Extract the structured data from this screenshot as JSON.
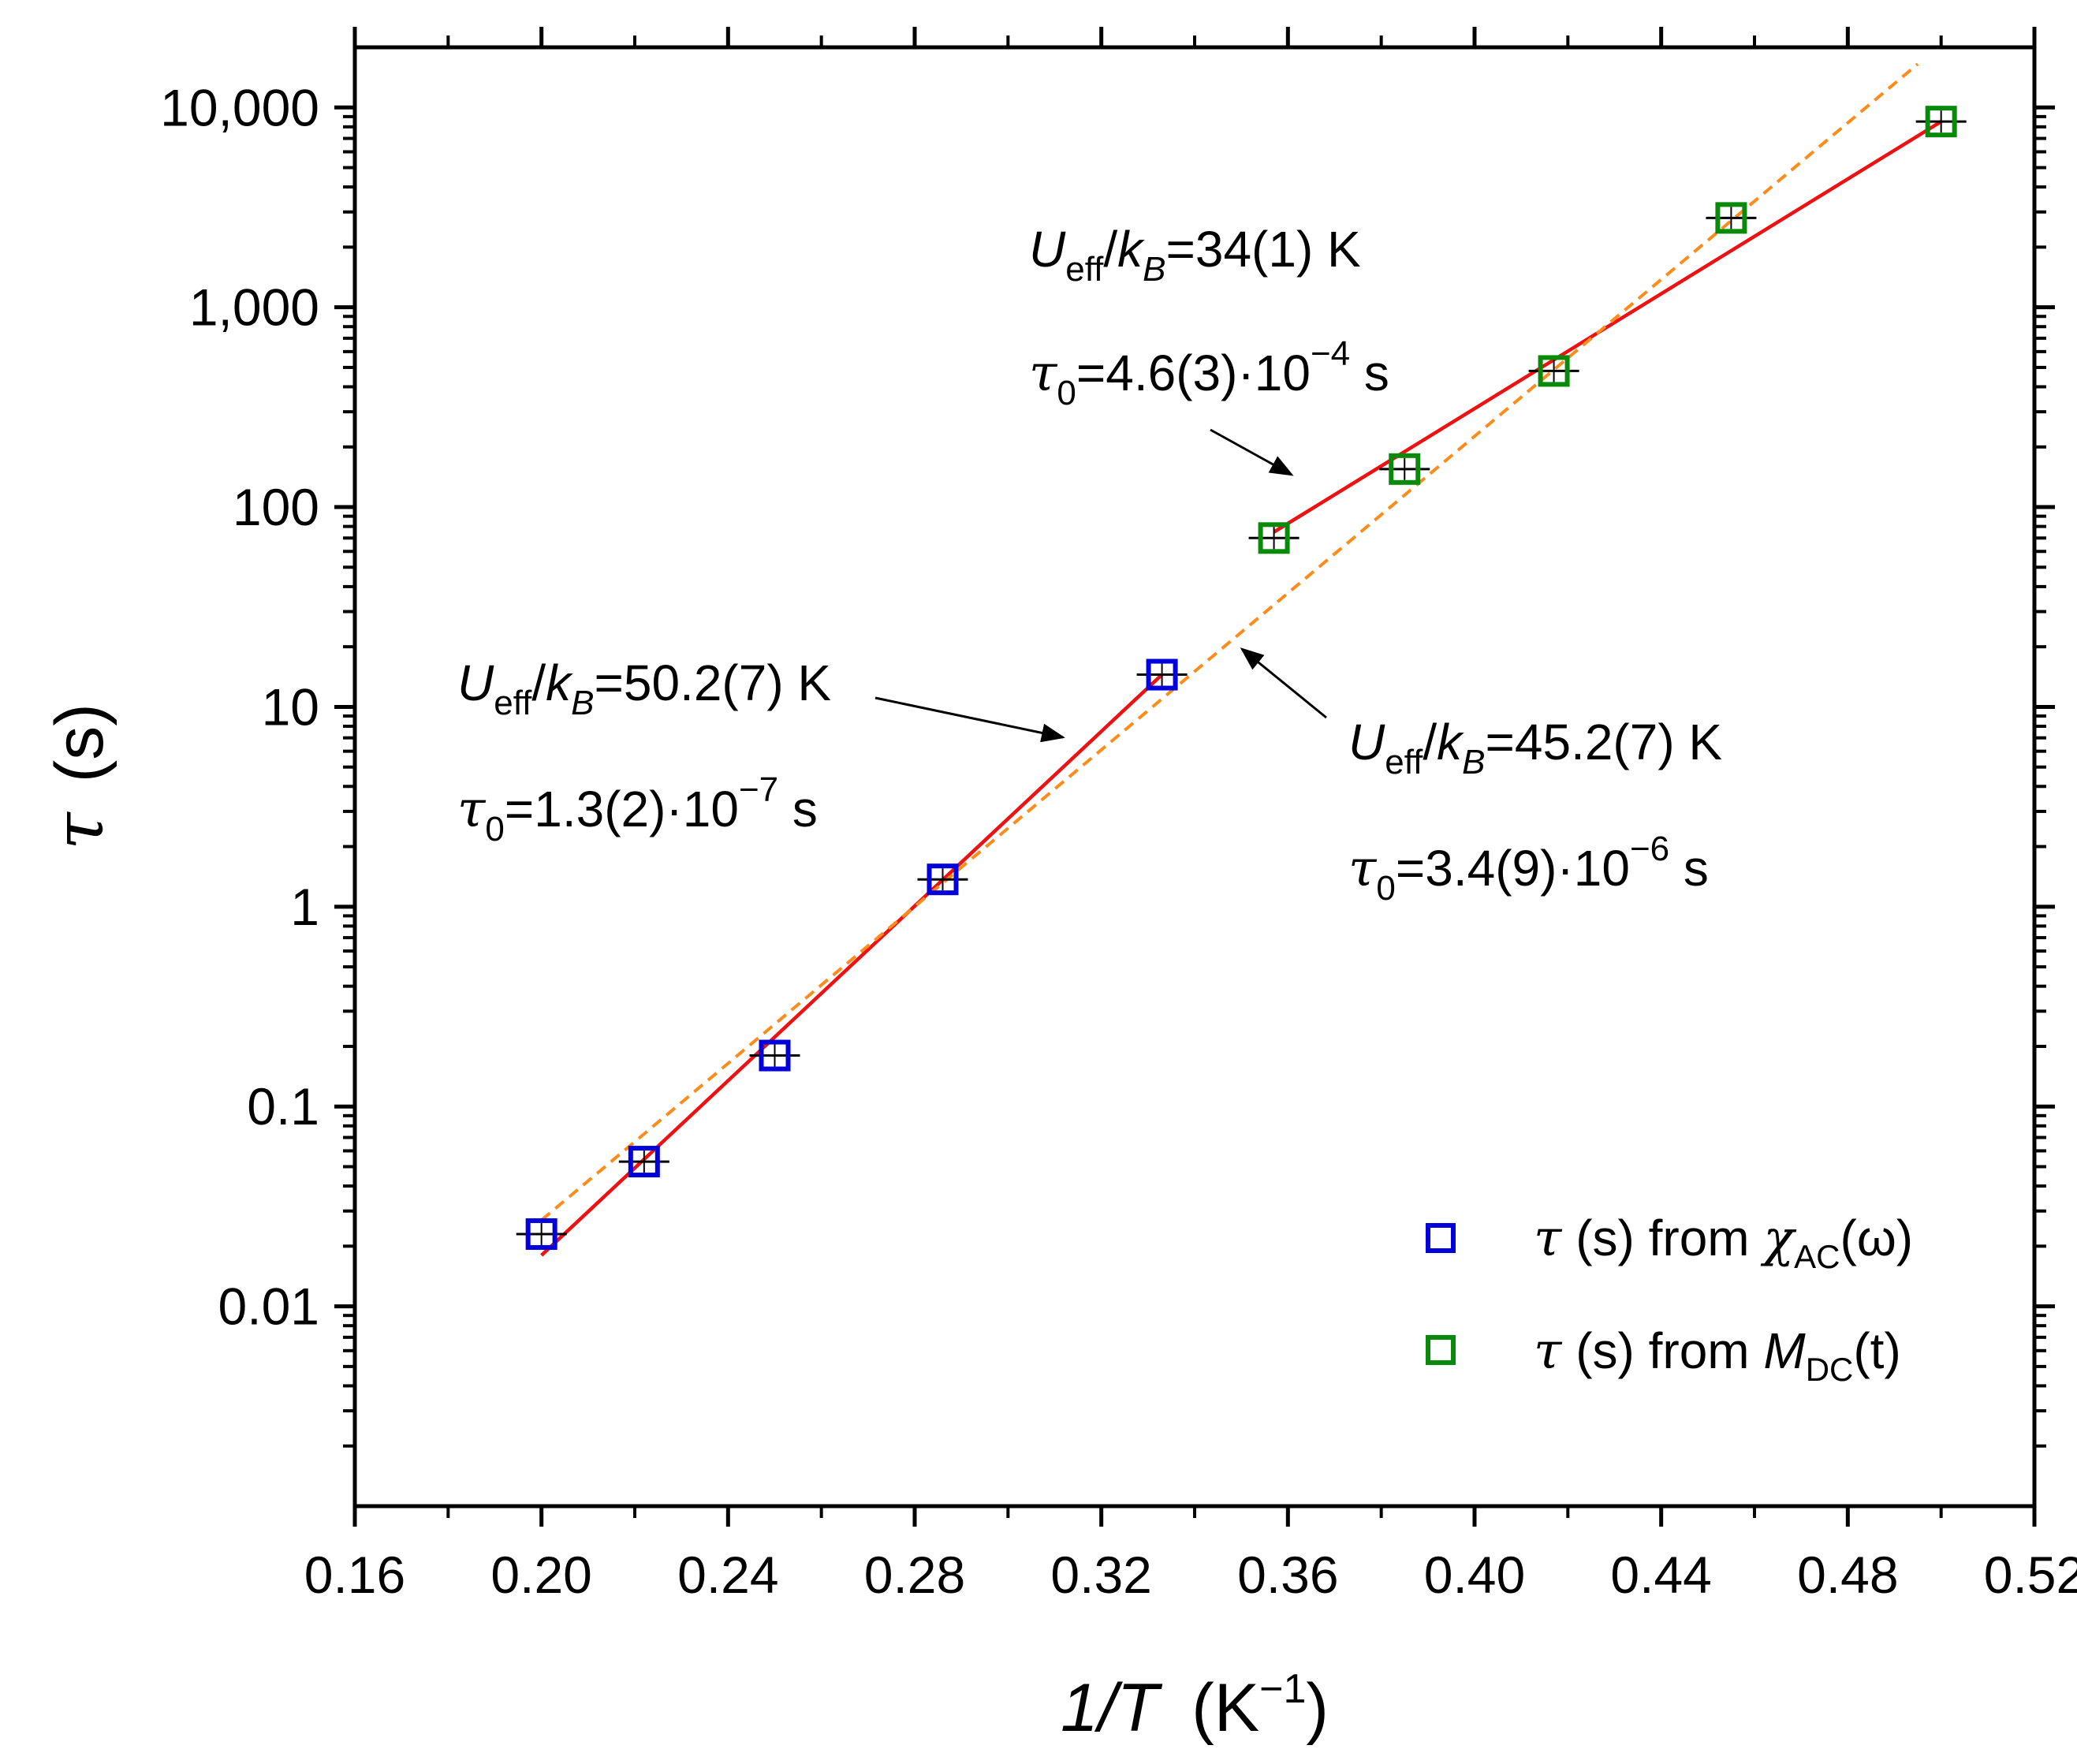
{
  "chart_data": {
    "type": "scatter",
    "x_scale": "linear",
    "y_scale": "log",
    "xlim": [
      0.16,
      0.52
    ],
    "ylim": [
      0.001,
      20000
    ],
    "x_ticks": [
      {
        "value": 0.16,
        "label": "0.16"
      },
      {
        "value": 0.2,
        "label": "0.20"
      },
      {
        "value": 0.24,
        "label": "0.24"
      },
      {
        "value": 0.28,
        "label": "0.28"
      },
      {
        "value": 0.32,
        "label": "0.32"
      },
      {
        "value": 0.36,
        "label": "0.36"
      },
      {
        "value": 0.4,
        "label": "0.40"
      },
      {
        "value": 0.44,
        "label": "0.44"
      },
      {
        "value": 0.48,
        "label": "0.48"
      },
      {
        "value": 0.52,
        "label": "0.52"
      }
    ],
    "y_ticks": [
      {
        "value": 0.01,
        "label": "0.01"
      },
      {
        "value": 0.1,
        "label": "0.1"
      },
      {
        "value": 1,
        "label": "1"
      },
      {
        "value": 10,
        "label": "10"
      },
      {
        "value": 100,
        "label": "100"
      },
      {
        "value": 1000,
        "label": "1,000"
      },
      {
        "value": 10000,
        "label": "10,000"
      }
    ],
    "xlabel": {
      "main": "1/T",
      "unit": "K",
      "unit_sup": "−1"
    },
    "ylabel": {
      "symbol": "τ",
      "unit": "(s)"
    },
    "series": [
      {
        "name": "τ (s) from χAC(ω)",
        "color": "#0000dd",
        "marker": "open-square",
        "points": [
          {
            "x": 0.2,
            "y": 0.023
          },
          {
            "x": 0.222,
            "y": 0.053
          },
          {
            "x": 0.25,
            "y": 0.18
          },
          {
            "x": 0.286,
            "y": 1.37
          },
          {
            "x": 0.333,
            "y": 14.5
          }
        ]
      },
      {
        "name": "τ (s) from MDC(t)",
        "color": "#0a8a0a",
        "marker": "open-square",
        "points": [
          {
            "x": 0.357,
            "y": 70
          },
          {
            "x": 0.385,
            "y": 155
          },
          {
            "x": 0.417,
            "y": 480
          },
          {
            "x": 0.455,
            "y": 2800
          },
          {
            "x": 0.5,
            "y": 8500
          }
        ]
      }
    ],
    "fits": [
      {
        "name": "fit AC",
        "color": "#ee1111",
        "style": "solid",
        "x": [
          0.2,
          0.333
        ],
        "y": [
          0.018,
          14.5
        ]
      },
      {
        "name": "fit DC",
        "color": "#ee1111",
        "style": "solid",
        "x": [
          0.357,
          0.5
        ],
        "y": [
          75,
          8500
        ]
      },
      {
        "name": "fit global",
        "color": "#ff8c1a",
        "style": "dashed",
        "x": [
          0.2,
          0.495
        ],
        "y": [
          0.027,
          16500
        ]
      }
    ],
    "annotations": [
      {
        "u": "U",
        "u_sub": "eff",
        "k": "k",
        "k_sub": "B",
        "value": "=34(1) K",
        "tau_value": "=4.6(3)·10",
        "tau_exp": "−4",
        "tau_unit": " s"
      },
      {
        "u": "U",
        "u_sub": "eff",
        "k": "k",
        "k_sub": "B",
        "value": "=50.2(7) K",
        "tau_value": "=1.3(2)·10",
        "tau_exp": "−7",
        "tau_unit": " s"
      },
      {
        "u": "U",
        "u_sub": "eff",
        "k": "k",
        "k_sub": "B",
        "value": "=45.2(7) K",
        "tau_value": "=3.4(9)·10",
        "tau_exp": "−6",
        "tau_unit": " s"
      }
    ],
    "legend": {
      "placement": "bottom-right",
      "entries": [
        {
          "symbol": "τ",
          "text": " (s) from ",
          "var": "χ",
          "var_sub": "AC",
          "tail": "(ω)",
          "color": "#0000dd"
        },
        {
          "symbol": "τ",
          "text": " (s) from ",
          "var": "M",
          "var_sub": "DC",
          "tail": "(t)",
          "color": "#0a8a0a"
        }
      ]
    }
  }
}
